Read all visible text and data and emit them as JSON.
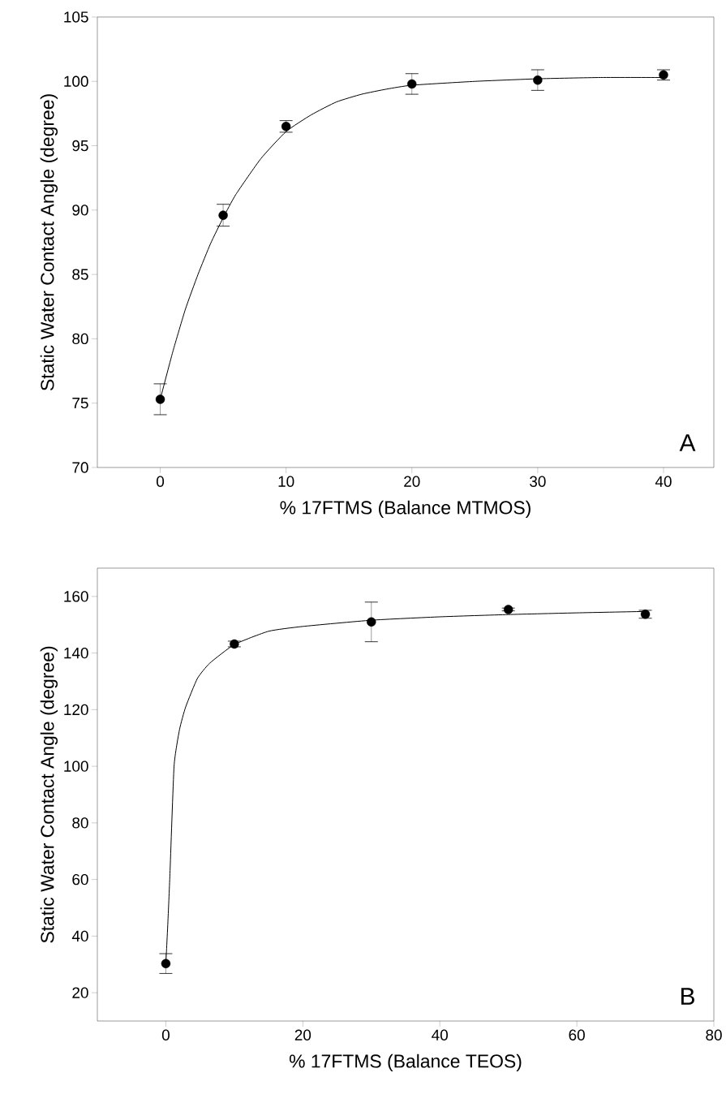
{
  "chart_data": [
    {
      "type": "scatter",
      "xlabel": "% 17FTMS (Balance MTMOS)",
      "ylabel": "Static Water Contact Angle (degree)",
      "annotations": [
        "A"
      ],
      "xlim": [
        -5,
        44
      ],
      "ylim": [
        70,
        105
      ],
      "xticks": [
        0,
        10,
        20,
        30,
        40
      ],
      "yticks": [
        70,
        75,
        80,
        85,
        90,
        95,
        100,
        105
      ],
      "series": [
        {
          "color": "#000000",
          "marker": "circle",
          "x": [
            0,
            5,
            10,
            20,
            30,
            40
          ],
          "values": [
            75.3,
            89.6,
            96.5,
            99.8,
            100.1,
            100.5
          ],
          "errors": [
            1.2,
            0.85,
            0.45,
            0.8,
            0.8,
            0.4
          ]
        },
        {
          "type": "line",
          "marker": "none",
          "color": "#000000",
          "x": [
            0,
            1,
            2,
            3,
            4,
            5,
            6,
            8,
            10,
            12,
            14,
            16,
            18,
            20,
            25,
            30,
            35,
            40
          ],
          "values": [
            75.3,
            79,
            82.3,
            85,
            87.4,
            89.4,
            91.2,
            94,
            96.1,
            97.4,
            98.4,
            99,
            99.4,
            99.7,
            100,
            100.2,
            100.3,
            100.3
          ]
        }
      ]
    },
    {
      "type": "scatter",
      "xlabel": "% 17FTMS (Balance TEOS)",
      "ylabel": "Static Water Contact Angle (degree)",
      "annotations": [
        "B"
      ],
      "xlim": [
        -10,
        80
      ],
      "ylim": [
        10,
        170
      ],
      "xticks": [
        0,
        20,
        40,
        60,
        80
      ],
      "yticks": [
        20,
        40,
        60,
        80,
        100,
        120,
        140,
        160
      ],
      "series": [
        {
          "color": "#000000",
          "marker": "circle",
          "x": [
            0,
            10,
            30,
            50,
            70
          ],
          "values": [
            30.3,
            143.2,
            151,
            155.4,
            153.7
          ],
          "errors": [
            3.5,
            1,
            7,
            0.5,
            1.4
          ]
        },
        {
          "type": "line",
          "marker": "none",
          "color": "#000000",
          "x": [
            0,
            0.1,
            0.3,
            0.6,
            1.2,
            2,
            2.9,
            4.6,
            6.4,
            10,
            15,
            20,
            30,
            40,
            50,
            60,
            70
          ],
          "values": [
            30.3,
            35,
            45,
            62,
            100,
            113,
            121,
            131,
            136.4,
            143,
            147.7,
            149.4,
            151.6,
            152.8,
            153.6,
            154.2,
            154.7
          ]
        }
      ]
    }
  ]
}
